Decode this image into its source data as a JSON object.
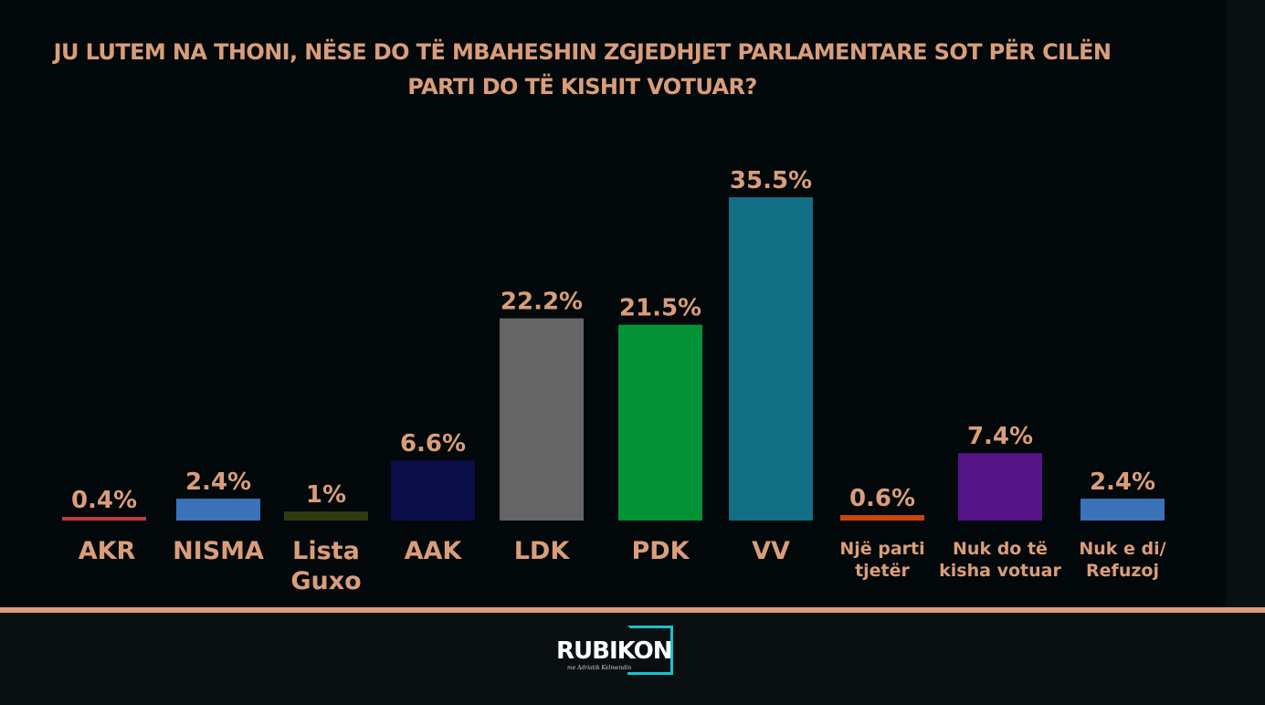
{
  "chart_data": {
    "type": "bar",
    "title": "JU LUTEM NA THONI, NËSE DO TË MBAHESHIN ZGJEDHJET PARLAMENTARE SOT PËR CILËN PARTI DO TË KISHIT VOTUAR?",
    "categories": [
      [
        "AKR"
      ],
      [
        "NISMA"
      ],
      [
        "Lista",
        "Guxo"
      ],
      [
        "AAK"
      ],
      [
        "LDK"
      ],
      [
        "PDK"
      ],
      [
        "VV"
      ],
      [
        "Një parti",
        "tjetër"
      ],
      [
        "Nuk do të",
        "kisha votuar"
      ],
      [
        "Nuk e di/",
        "Refuzoj"
      ]
    ],
    "values": [
      0.4,
      2.4,
      1,
      6.6,
      22.2,
      21.5,
      35.5,
      0.6,
      7.4,
      2.4
    ],
    "value_labels": [
      "0.4%",
      "2.4%",
      "1%",
      "6.6%",
      "22.2%",
      "21.5%",
      "35.5%",
      "0.6%",
      "7.4%",
      "2.4%"
    ],
    "colors": [
      "#c0393b",
      "#3b72b8",
      "#2f3a10",
      "#0b0e48",
      "#656565",
      "#049237",
      "#126f85",
      "#c8450b",
      "#551587",
      "#3b72b8"
    ],
    "ylim": [
      0,
      35.5
    ],
    "grid": false,
    "legend": "none",
    "xlabel": "",
    "ylabel": ""
  },
  "text_color": "#d99e79",
  "brand": {
    "name": "RUBIKON",
    "tagline": "me Adriatik Kelmendin",
    "accent": "#19c2cf"
  }
}
